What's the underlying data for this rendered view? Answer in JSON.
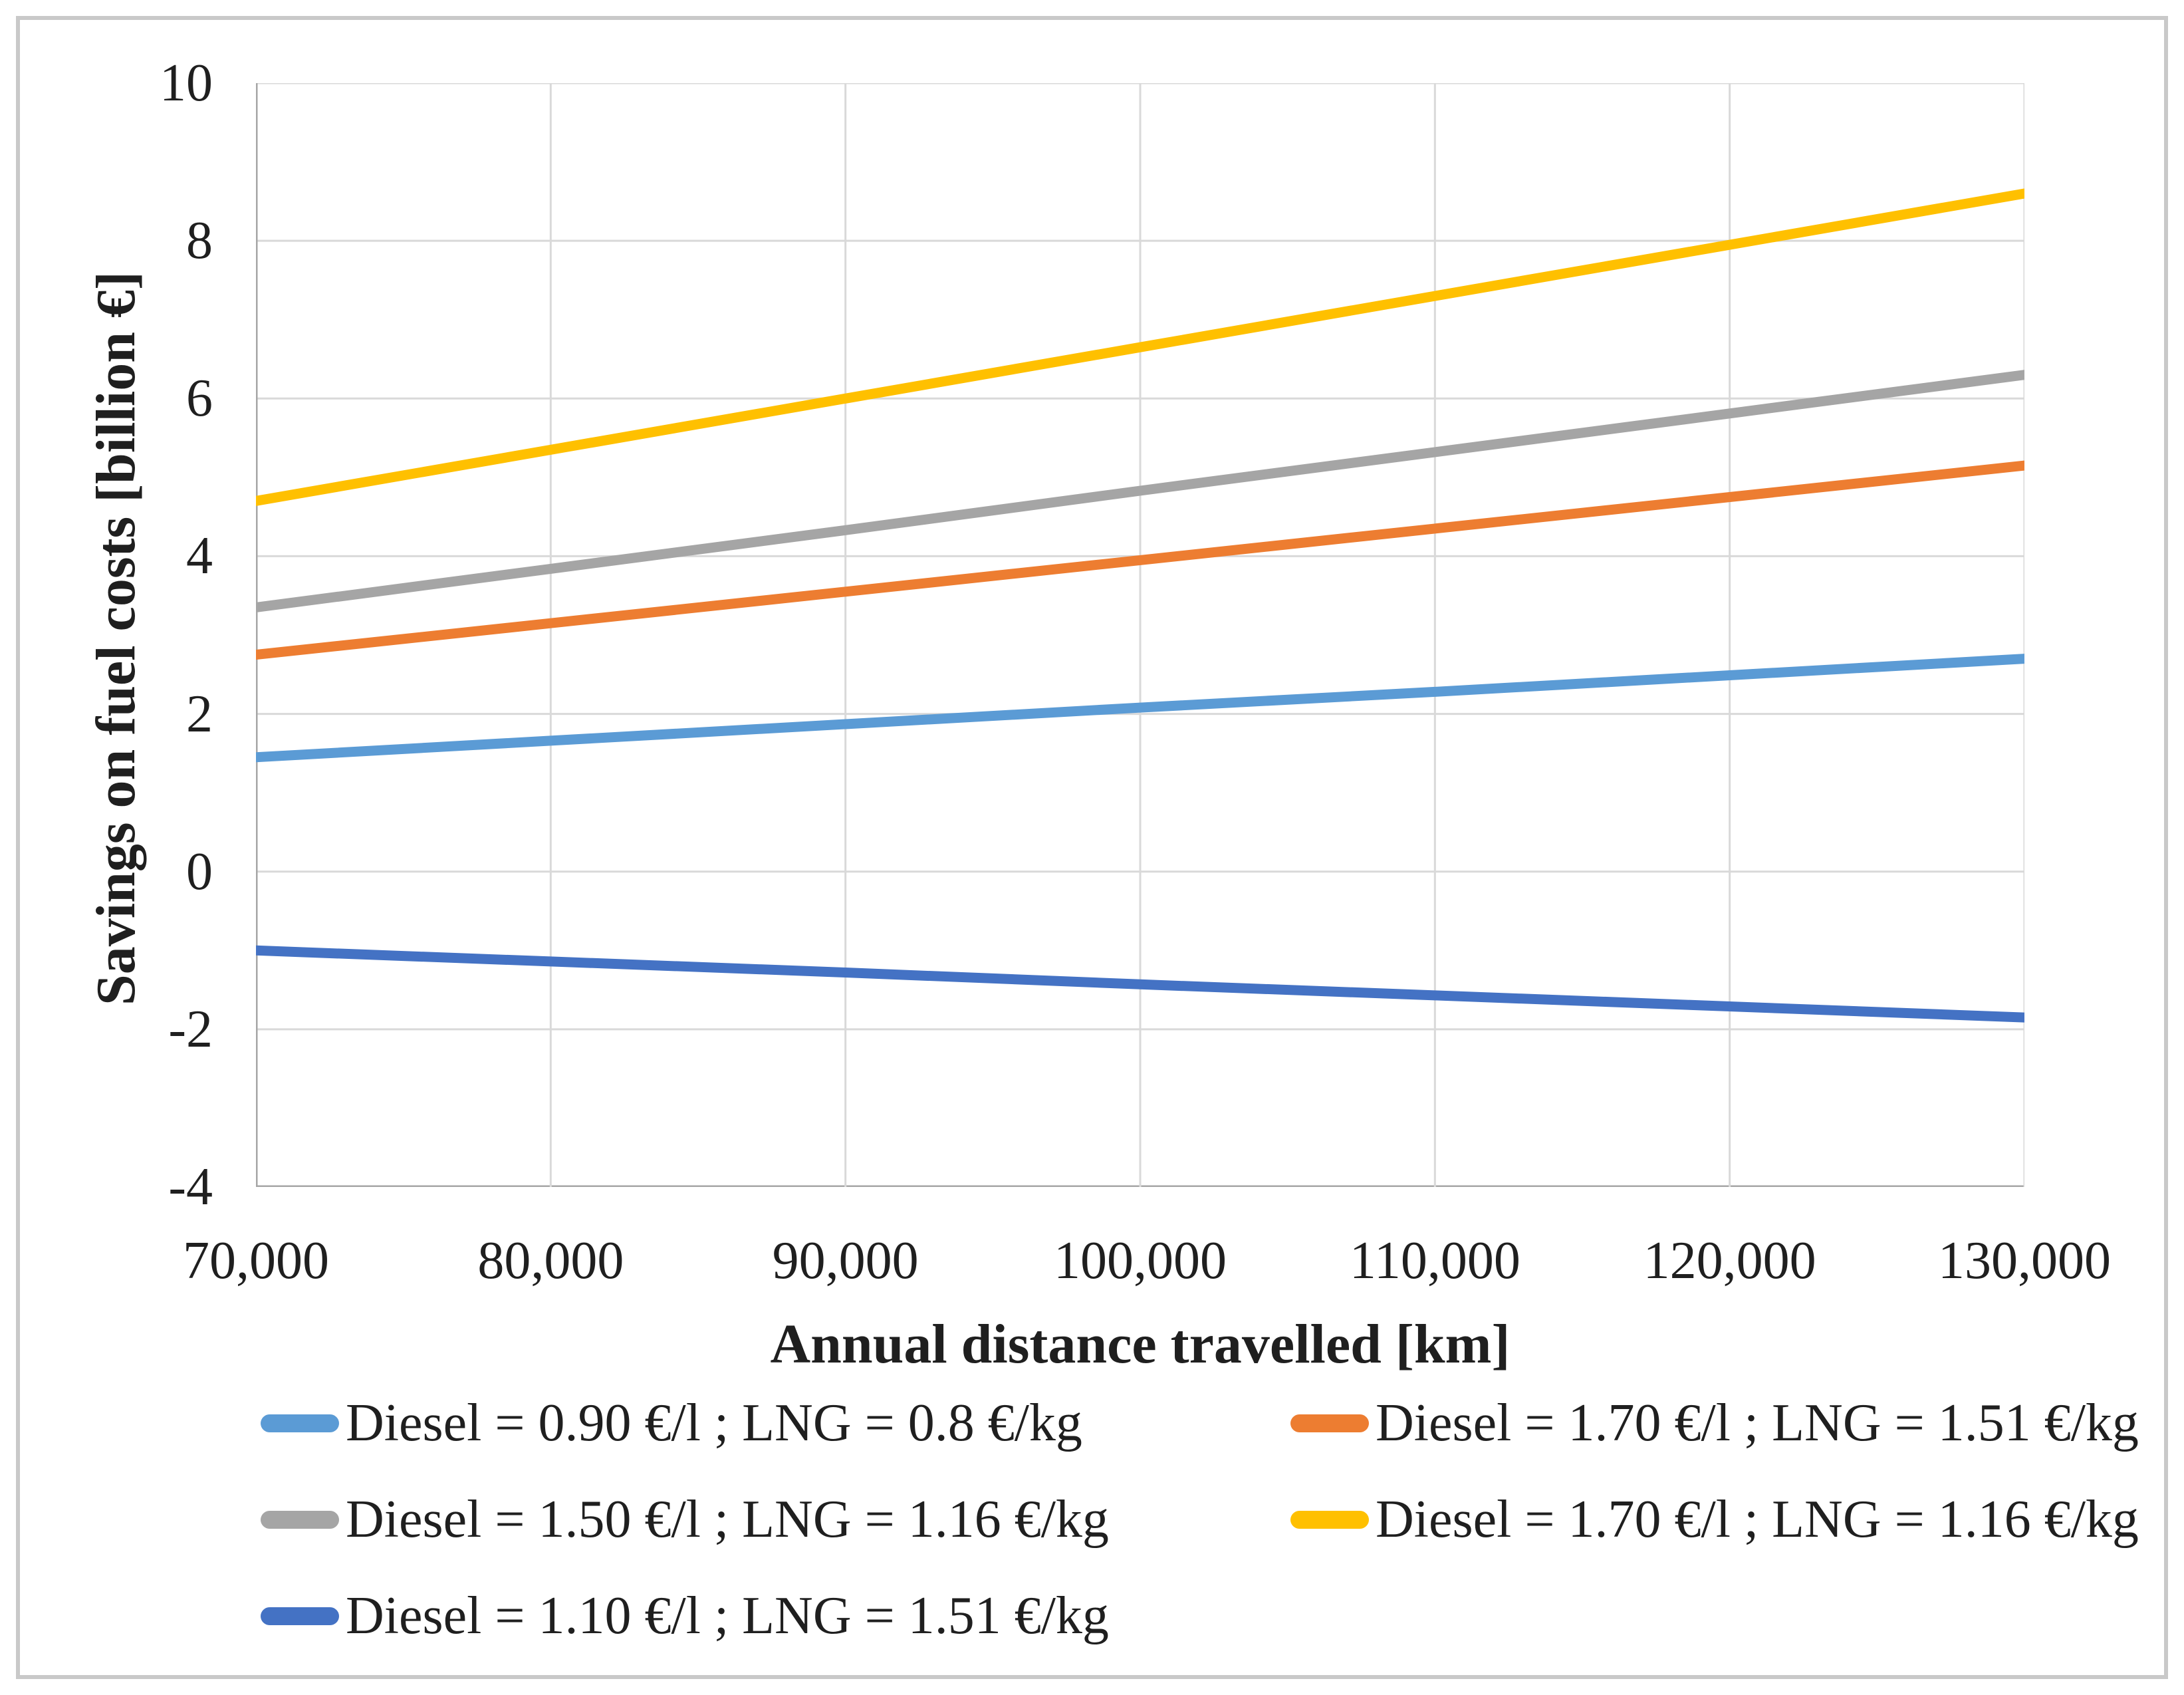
{
  "figure": {
    "frame_color": "#c9c9c9",
    "background_color": "#ffffff"
  },
  "chart_data": {
    "type": "line",
    "title": "",
    "xlabel": "Annual distance travelled [km]",
    "ylabel": "Savings on fuel costs [billion €]",
    "xlim": [
      70000,
      130000
    ],
    "ylim": [
      -4,
      10
    ],
    "x": [
      70000,
      80000,
      90000,
      100000,
      110000,
      120000,
      130000
    ],
    "x_tick_labels": [
      "70,000",
      "80,000",
      "90,000",
      "100,000",
      "110,000",
      "120,000",
      "130,000"
    ],
    "y_ticks": [
      10,
      8,
      6,
      4,
      2,
      0,
      -2,
      -4
    ],
    "grid": true,
    "gridline_color": "#d9d9d9",
    "axis_line_color": "#a6a6a6",
    "legend_position": "bottom",
    "series": [
      {
        "name": "Diesel = 0.90 €/l ; LNG = 0.8 €/kg",
        "color": "#5B9BD5",
        "values": [
          1.45,
          1.66,
          1.87,
          2.08,
          2.28,
          2.49,
          2.7
        ]
      },
      {
        "name": "Diesel = 1.70 €/l ; LNG = 1.51 €/kg",
        "color": "#ED7D31",
        "values": [
          2.75,
          3.15,
          3.55,
          3.95,
          4.35,
          4.75,
          5.15
        ]
      },
      {
        "name": "Diesel = 1.50 €/l ; LNG = 1.16 €/kg",
        "color": "#A5A5A5",
        "values": [
          3.35,
          3.84,
          4.33,
          4.83,
          5.32,
          5.81,
          6.3
        ]
      },
      {
        "name": "Diesel = 1.70 €/l ; LNG = 1.16 €/kg",
        "color": "#FFC000",
        "values": [
          4.7,
          5.35,
          6.0,
          6.65,
          7.3,
          7.95,
          8.6
        ]
      },
      {
        "name": "Diesel = 1.10 €/l ; LNG = 1.51 €/kg",
        "color": "#4472C4",
        "values": [
          -1.0,
          -1.14,
          -1.28,
          -1.43,
          -1.57,
          -1.71,
          -1.85
        ]
      }
    ]
  }
}
